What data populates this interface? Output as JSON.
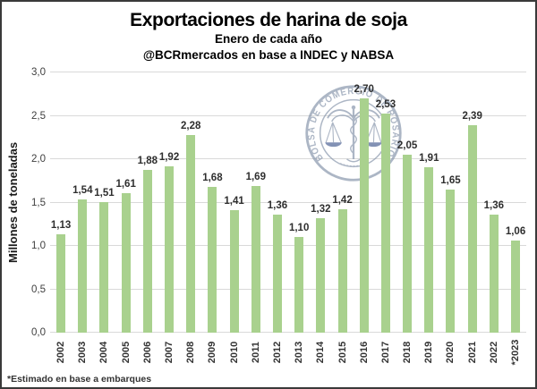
{
  "header": {
    "title": "Exportaciones de harina de soja",
    "subtitle1": "Enero de cada año",
    "subtitle2": "@BCRmercados en base a INDEC y NABSA"
  },
  "footnote": "*Estimado en base a embarques",
  "watermark": {
    "text": "BOLSA DE COMERCIO DE ROSARIO"
  },
  "colors": {
    "bar": "#a9d18e",
    "gridline": "#d9d9d9",
    "axis_text": "#404040",
    "watermark": "#8694aa",
    "watermark_pan": "#4a5f93"
  },
  "chart_data": {
    "type": "bar",
    "title": "Exportaciones de harina de soja",
    "subtitle": "Enero de cada año",
    "source_line": "@BCRmercados en base a INDEC y NABSA",
    "xlabel": "",
    "ylabel": "Millones de toneladas",
    "ylim": [
      0,
      3.0
    ],
    "grid": true,
    "legend": false,
    "yticks": [
      "0,0",
      "0,5",
      "1,0",
      "1,5",
      "2,0",
      "2,5",
      "3,0"
    ],
    "categories": [
      "2002",
      "2003",
      "2004",
      "2005",
      "2006",
      "2007",
      "2008",
      "2009",
      "2010",
      "2011",
      "2012",
      "2013",
      "2014",
      "2015",
      "2016",
      "2017",
      "2018",
      "2019",
      "2020",
      "2021",
      "2022",
      "*2023"
    ],
    "values": [
      1.13,
      1.54,
      1.51,
      1.61,
      1.88,
      1.92,
      2.28,
      1.68,
      1.41,
      1.69,
      1.36,
      1.1,
      1.32,
      1.42,
      2.7,
      2.53,
      2.05,
      1.91,
      1.65,
      2.39,
      1.36,
      1.06
    ],
    "labels": [
      "1,13",
      "1,54",
      "1,51",
      "1,61",
      "1,88",
      "1,92",
      "2,28",
      "1,68",
      "1,41",
      "1,69",
      "1,36",
      "1,10",
      "1,32",
      "1,42",
      "2,70",
      "2,53",
      "2,05",
      "1,91",
      "1,65",
      "2,39",
      "1,36",
      "1,06"
    ],
    "footnote": "*Estimado en base a embarques"
  }
}
